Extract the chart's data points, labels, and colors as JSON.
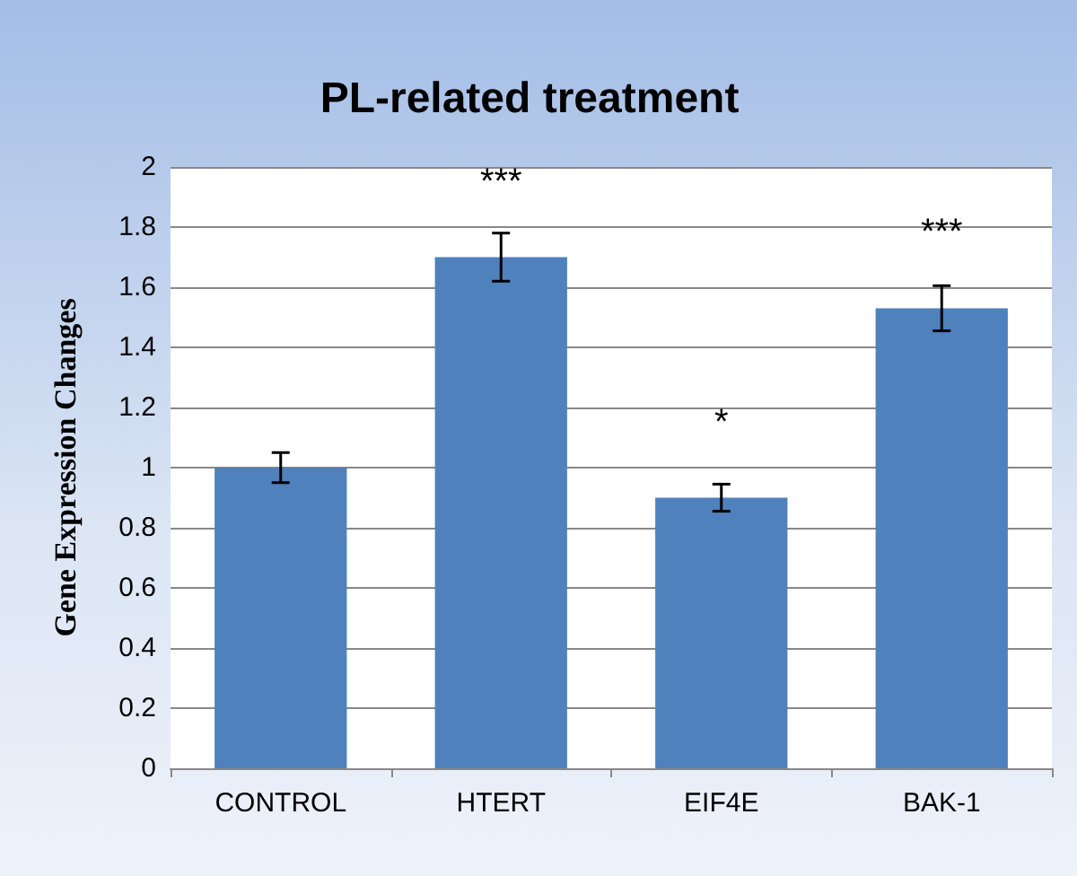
{
  "chart_data": {
    "type": "bar",
    "title": "PL-related treatment",
    "ylabel": "Gene Expression Changes",
    "categories": [
      "CONTROL",
      "HTERT",
      "EIF4E",
      "BAK-1"
    ],
    "values": [
      1.0,
      1.7,
      0.9,
      1.53
    ],
    "errors": [
      0.05,
      0.08,
      0.045,
      0.075
    ],
    "color": "#4f81bd",
    "ylim": [
      0,
      2
    ],
    "yticks": [
      0,
      0.2,
      0.4,
      0.6,
      0.8,
      1,
      1.2,
      1.4,
      1.6,
      1.8,
      2
    ],
    "grid": "y",
    "annotations": [
      {
        "text": "***",
        "x": "HTERT",
        "y": 1.7
      },
      {
        "text": "*",
        "x": "EIF4E",
        "y": 0.9
      },
      {
        "text": "***",
        "x": "BAK-1",
        "y": 1.53
      }
    ]
  }
}
